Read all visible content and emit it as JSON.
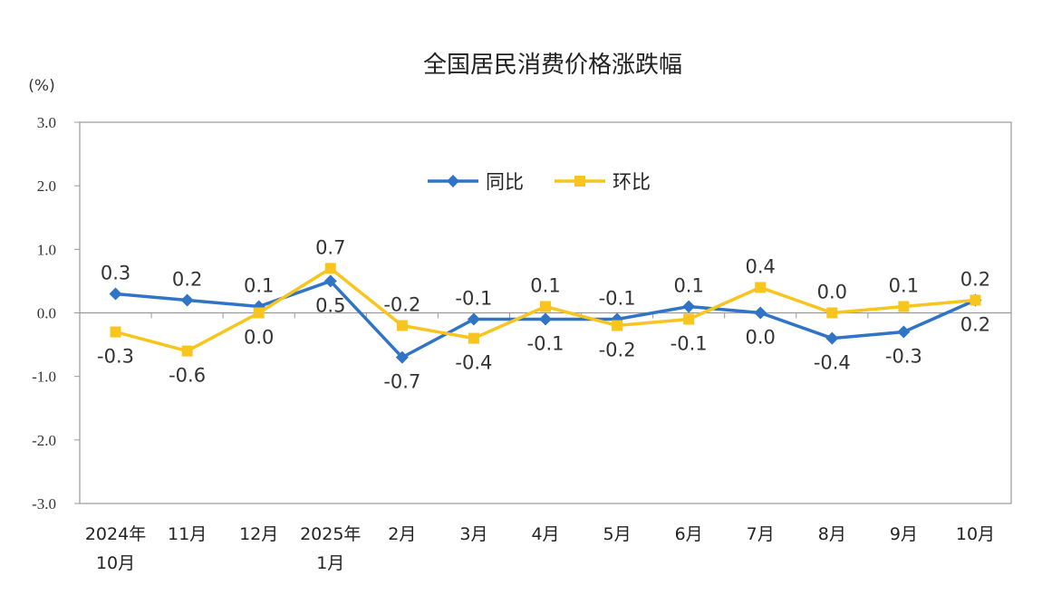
{
  "chart_data": {
    "type": "line",
    "title": "全国居民消费价格涨跌幅",
    "ylabel": "(%)",
    "ylim": [
      -3.0,
      3.0
    ],
    "yticks": [
      "3.0",
      "2.0",
      "1.0",
      "0.0",
      "-1.0",
      "-2.0",
      "-3.0"
    ],
    "categories": [
      [
        "2024年",
        "10月"
      ],
      [
        "11月"
      ],
      [
        "12月"
      ],
      [
        "2025年",
        "1月"
      ],
      [
        "2月"
      ],
      [
        "3月"
      ],
      [
        "4月"
      ],
      [
        "5月"
      ],
      [
        "6月"
      ],
      [
        "7月"
      ],
      [
        "8月"
      ],
      [
        "9月"
      ],
      [
        "10月"
      ]
    ],
    "legend_position": "top-center",
    "grid": false,
    "series": [
      {
        "name": "同比",
        "color": "#2f74c6",
        "marker": "diamond",
        "values": [
          0.3,
          0.2,
          0.1,
          0.5,
          -0.7,
          -0.1,
          -0.1,
          -0.1,
          0.1,
          0.0,
          -0.4,
          -0.3,
          0.2
        ]
      },
      {
        "name": "环比",
        "color": "#f7c51e",
        "marker": "square",
        "values": [
          -0.3,
          -0.6,
          0.0,
          0.7,
          -0.2,
          -0.4,
          0.1,
          -0.2,
          -0.1,
          0.4,
          0.0,
          0.1,
          0.2
        ]
      }
    ]
  }
}
